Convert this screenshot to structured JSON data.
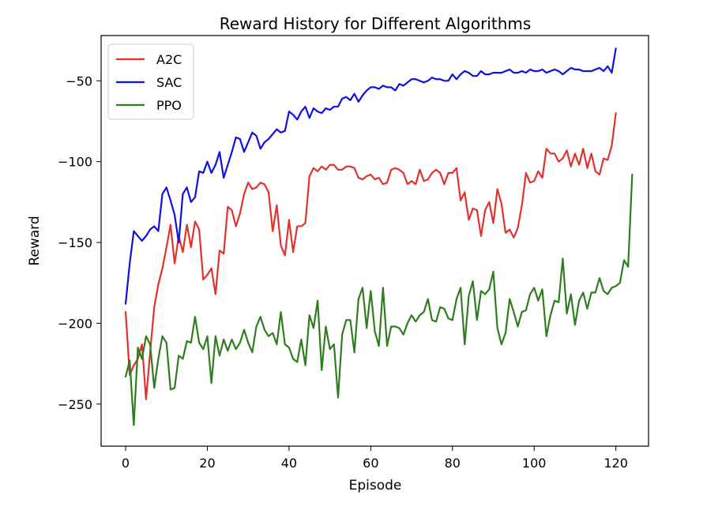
{
  "chart_data": {
    "type": "line",
    "title": "Reward History for Different Algorithms",
    "xlabel": "Episode",
    "ylabel": "Reward",
    "xlim": [
      -6,
      128
    ],
    "ylim": [
      -276,
      -22
    ],
    "xticks": [
      0,
      20,
      40,
      60,
      80,
      100,
      120
    ],
    "yticks": [
      -250,
      -200,
      -150,
      -100,
      -50
    ],
    "xtick_labels": [
      "0",
      "20",
      "40",
      "60",
      "80",
      "100",
      "120"
    ],
    "ytick_labels": [
      "−250",
      "−200",
      "−150",
      "−100",
      "−50"
    ],
    "grid": false,
    "legend_position": "top-left",
    "series": [
      {
        "name": "A2C",
        "color": "#e0332d",
        "values": [
          -193,
          -232,
          -226,
          -222,
          -213,
          -247,
          -218,
          -190,
          -176,
          -166,
          -153,
          -139,
          -163,
          -146,
          -156,
          -139,
          -153,
          -137,
          -142,
          -173,
          -170,
          -166,
          -182,
          -155,
          -157,
          -128,
          -130,
          -140,
          -132,
          -120,
          -113,
          -117,
          -116,
          -113,
          -114,
          -119,
          -143,
          -127,
          -152,
          -158,
          -136,
          -156,
          -140,
          -140,
          -138,
          -109,
          -104,
          -106,
          -103,
          -105,
          -102,
          -102,
          -105,
          -105,
          -103,
          -103,
          -104,
          -110,
          -111,
          -109,
          -108,
          -111,
          -110,
          -114,
          -113,
          -105,
          -104,
          -105,
          -107,
          -114,
          -112,
          -114,
          -105,
          -112,
          -111,
          -107,
          -105,
          -107,
          -114,
          -107,
          -107,
          -104,
          -124,
          -119,
          -136,
          -129,
          -130,
          -146,
          -130,
          -125,
          -138,
          -117,
          -126,
          -144,
          -142,
          -147,
          -141,
          -127,
          -107,
          -113,
          -112,
          -106,
          -110,
          -92,
          -95,
          -95,
          -100,
          -98,
          -93,
          -103,
          -95,
          -102,
          -92,
          -104,
          -95,
          -106,
          -108,
          -98,
          -99,
          -90,
          -70
        ],
        "x_start": 0
      },
      {
        "name": "SAC",
        "color": "#1010e0",
        "values": [
          -188,
          -163,
          -143,
          -146,
          -149,
          -146,
          -142,
          -140,
          -143,
          -120,
          -116,
          -124,
          -133,
          -150,
          -120,
          -116,
          -125,
          -122,
          -106,
          -107,
          -100,
          -107,
          -102,
          -94,
          -110,
          -102,
          -94,
          -85,
          -86,
          -94,
          -88,
          -82,
          -84,
          -92,
          -88,
          -86,
          -83,
          -80,
          -82,
          -81,
          -69,
          -71,
          -74,
          -69,
          -66,
          -73,
          -67,
          -69,
          -70,
          -67,
          -68,
          -66,
          -66,
          -61,
          -60,
          -62,
          -58,
          -63,
          -59,
          -56,
          -54,
          -54,
          -55,
          -53,
          -54,
          -54,
          -56,
          -52,
          -53,
          -51,
          -49,
          -49,
          -50,
          -51,
          -50,
          -48,
          -49,
          -49,
          -50,
          -50,
          -46,
          -49,
          -46,
          -44,
          -45,
          -47,
          -47,
          -44,
          -46,
          -46,
          -45,
          -45,
          -45,
          -44,
          -43,
          -45,
          -45,
          -44,
          -45,
          -43,
          -44,
          -44,
          -43,
          -45,
          -44,
          -43,
          -44,
          -46,
          -44,
          -42,
          -43,
          -43,
          -44,
          -44,
          -44,
          -43,
          -42,
          -44,
          -41,
          -45,
          -30
        ],
        "x_start": 0
      },
      {
        "name": "PPO",
        "color": "#2e7d1e",
        "values": [
          -233,
          -223,
          -263,
          -215,
          -222,
          -208,
          -213,
          -240,
          -222,
          -208,
          -212,
          -241,
          -240,
          -220,
          -222,
          -211,
          -212,
          -196,
          -212,
          -216,
          -208,
          -237,
          -208,
          -220,
          -210,
          -217,
          -210,
          -216,
          -212,
          -204,
          -212,
          -218,
          -202,
          -196,
          -204,
          -208,
          -206,
          -213,
          -193,
          -213,
          -215,
          -222,
          -224,
          -210,
          -226,
          -195,
          -203,
          -186,
          -229,
          -202,
          -216,
          -213,
          -246,
          -207,
          -198,
          -198,
          -218,
          -185,
          -178,
          -203,
          -180,
          -205,
          -214,
          -178,
          -214,
          -202,
          -202,
          -203,
          -207,
          -200,
          -195,
          -199,
          -195,
          -193,
          -185,
          -198,
          -199,
          -190,
          -191,
          -197,
          -198,
          -185,
          -178,
          -213,
          -183,
          -174,
          -198,
          -180,
          -182,
          -179,
          -168,
          -203,
          -213,
          -206,
          -185,
          -193,
          -202,
          -193,
          -192,
          -182,
          -178,
          -186,
          -179,
          -208,
          -195,
          -186,
          -187,
          -160,
          -194,
          -182,
          -201,
          -186,
          -181,
          -191,
          -181,
          -181,
          -172,
          -180,
          -182,
          -178,
          -177,
          -175,
          -161,
          -165,
          -108
        ],
        "x_start": 0
      }
    ]
  }
}
